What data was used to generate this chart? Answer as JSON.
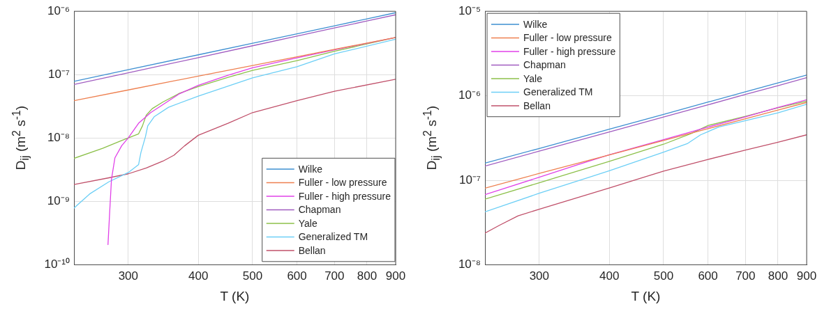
{
  "chart_data": [
    {
      "type": "line",
      "xlabel": "T (K)",
      "ylabel": "D$_{ij}$  (m$^{2}$ s$^{-1}$)",
      "log": "xy",
      "grid": true,
      "legend": "bottom right",
      "xlim": [
        240,
        900
      ],
      "ylim": [
        1e-10,
        1e-06
      ],
      "xticks": [
        300,
        400,
        500,
        600,
        700,
        800,
        900
      ],
      "yticks": [
        {
          "value": 1e-10,
          "label": "10⁻¹⁰"
        },
        {
          "value": 1e-09,
          "label": "10⁻⁹"
        },
        {
          "value": 1e-08,
          "label": "10⁻⁸"
        },
        {
          "value": 1e-07,
          "label": "10⁻⁷"
        },
        {
          "value": 1e-06,
          "label": "10⁻⁶"
        }
      ],
      "series": [
        {
          "name": "Wilke",
          "color": "#3d8fd1",
          "x": [
            240,
            300,
            400,
            500,
            600,
            700,
            800,
            900
          ],
          "values": [
            7.85e-08,
            1.2e-07,
            2.06e-07,
            3.13e-07,
            4.42e-07,
            5.91e-07,
            7.6e-07,
            9.5e-07
          ]
        },
        {
          "name": "Fuller - low pressure",
          "color": "#ee8050",
          "x": [
            240,
            300,
            400,
            500,
            600,
            700,
            800,
            900
          ],
          "values": [
            3.9e-08,
            5.75e-08,
            9.5e-08,
            1.4e-07,
            1.91e-07,
            2.51e-07,
            3.15e-07,
            3.87e-07
          ]
        },
        {
          "name": "Fuller - high pressure",
          "color": "#e040e8",
          "x": [
            276,
            278,
            280,
            284,
            292,
            300,
            313,
            329,
            346,
            370,
            400,
            452,
            500,
            600,
            700,
            900
          ],
          "values": [
            2.1e-10,
            7.1e-10,
            2.25e-09,
            4.9e-09,
            7.6e-09,
            1.01e-08,
            1.72e-08,
            2.53e-08,
            3.39e-08,
            5e-08,
            6.8e-08,
            9.8e-08,
            1.29e-07,
            1.84e-07,
            2.46e-07,
            3.87e-07
          ]
        },
        {
          "name": "Chapman",
          "color": "#a05cc0",
          "x": [
            240,
            300,
            400,
            500,
            600,
            700,
            800,
            900
          ],
          "values": [
            7e-08,
            1.07e-07,
            1.86e-07,
            2.86e-07,
            4.05e-07,
            5.45e-07,
            7.03e-07,
            8.8e-07
          ]
        },
        {
          "name": "Yale",
          "color": "#8cc04a",
          "x": [
            240,
            270,
            292,
            313,
            318,
            323,
            331,
            346,
            370,
            400,
            452,
            500,
            600,
            700,
            900
          ],
          "values": [
            4.8e-09,
            6.9e-09,
            9.2e-09,
            1.17e-08,
            1.56e-08,
            2.3e-08,
            2.92e-08,
            3.72e-08,
            5.08e-08,
            6.5e-08,
            9.1e-08,
            1.17e-07,
            1.67e-07,
            2.34e-07,
            3.87e-07
          ]
        },
        {
          "name": "Generalized TM",
          "color": "#6ccff6",
          "x": [
            240,
            256,
            277,
            300,
            313,
            316,
            322,
            325,
            334,
            354,
            400,
            500,
            600,
            700,
            900
          ],
          "values": [
            7.9e-10,
            1.32e-09,
            2.05e-09,
            2.87e-09,
            3.84e-09,
            5.93e-09,
            1.06e-08,
            1.56e-08,
            2.19e-08,
            3.07e-08,
            4.6e-08,
            8.9e-08,
            1.34e-07,
            2.13e-07,
            3.62e-07
          ]
        },
        {
          "name": "Bellan",
          "color": "#c0506a",
          "x": [
            240,
            277,
            300,
            323,
            346,
            362,
            378,
            400,
            452,
            500,
            600,
            700,
            900
          ],
          "values": [
            1.86e-09,
            2.37e-09,
            2.74e-09,
            3.38e-09,
            4.35e-09,
            5.38e-09,
            7.55e-09,
            1.11e-08,
            1.72e-08,
            2.53e-08,
            3.91e-08,
            5.48e-08,
            8.5e-08
          ]
        }
      ]
    },
    {
      "type": "line",
      "xlabel": "T (K)",
      "ylabel": "D$_{ij}$ (m$^{2}$ s$^{-1}$)",
      "log": "xy",
      "grid": true,
      "legend": "top left",
      "xlim": [
        240,
        900
      ],
      "ylim": [
        1e-08,
        1e-05
      ],
      "xticks": [
        300,
        400,
        500,
        600,
        700,
        800,
        900
      ],
      "yticks": [
        {
          "value": 1e-08,
          "label": "10⁻⁸"
        },
        {
          "value": 1e-07,
          "label": "10⁻⁷"
        },
        {
          "value": 1e-06,
          "label": "10⁻⁶"
        },
        {
          "value": 1e-05,
          "label": "10⁻⁵"
        }
      ],
      "series": [
        {
          "name": "Wilke",
          "color": "#3d8fd1",
          "x": [
            240,
            300,
            400,
            500,
            600,
            700,
            800,
            900
          ],
          "values": [
            1.6e-07,
            2.39e-07,
            4.04e-07,
            6.05e-07,
            8.43e-07,
            1.12e-06,
            1.42e-06,
            1.76e-06
          ]
        },
        {
          "name": "Fuller - low pressure",
          "color": "#ee8050",
          "x": [
            240,
            300,
            400,
            500,
            600,
            700,
            800,
            900
          ],
          "values": [
            8.1e-08,
            1.21e-07,
            2e-07,
            2.97e-07,
            4.09e-07,
            5.37e-07,
            6.79e-07,
            8.35e-07
          ]
        },
        {
          "name": "Fuller - high pressure",
          "color": "#e040e8",
          "x": [
            240,
            300,
            350,
            400,
            500,
            600,
            700,
            800,
            900
          ],
          "values": [
            6.8e-08,
            1.09e-07,
            1.52e-07,
            2.01e-07,
            3.04e-07,
            4.27e-07,
            5.66e-07,
            7.3e-07,
            9e-07
          ]
        },
        {
          "name": "Chapman",
          "color": "#a05cc0",
          "x": [
            240,
            300,
            400,
            500,
            600,
            700,
            800,
            900
          ],
          "values": [
            1.48e-07,
            2.22e-07,
            3.74e-07,
            5.62e-07,
            7.83e-07,
            1.04e-06,
            1.32e-06,
            1.64e-06
          ]
        },
        {
          "name": "Yale",
          "color": "#8cc04a",
          "x": [
            240,
            300,
            400,
            500,
            560,
            600,
            700,
            800,
            900
          ],
          "values": [
            6e-08,
            9.4e-08,
            1.68e-07,
            2.68e-07,
            3.59e-07,
            4.46e-07,
            5.74e-07,
            7.24e-07,
            8.67e-07
          ]
        },
        {
          "name": "Generalized TM",
          "color": "#6ccff6",
          "x": [
            240,
            300,
            400,
            500,
            551,
            582,
            628,
            700,
            800,
            900
          ],
          "values": [
            4.25e-08,
            7.05e-08,
            1.3e-07,
            2.16e-07,
            2.72e-07,
            3.46e-07,
            4.3e-07,
            5.08e-07,
            6.31e-07,
            7.94e-07
          ]
        },
        {
          "name": "Bellan",
          "color": "#c0506a",
          "x": [
            240,
            255,
            275,
            300,
            400,
            500,
            600,
            700,
            800,
            900
          ],
          "values": [
            2.38e-08,
            2.96e-08,
            3.81e-08,
            4.57e-08,
            8.15e-08,
            1.29e-07,
            1.77e-07,
            2.29e-07,
            2.83e-07,
            3.46e-07
          ]
        }
      ]
    }
  ]
}
